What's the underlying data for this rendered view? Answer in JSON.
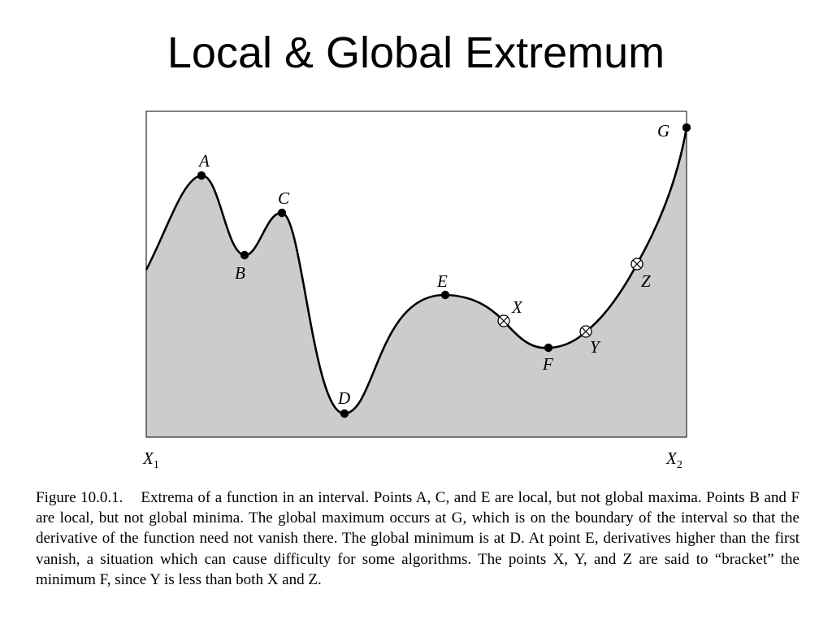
{
  "slide": {
    "title": "Local & Global Extremum"
  },
  "figure": {
    "fill_color": "#cccccc",
    "curve_color": "#000000",
    "points": [
      {
        "id": "A",
        "label": "A",
        "marker": "filled"
      },
      {
        "id": "B",
        "label": "B",
        "marker": "filled"
      },
      {
        "id": "C",
        "label": "C",
        "marker": "filled"
      },
      {
        "id": "D",
        "label": "D",
        "marker": "filled"
      },
      {
        "id": "E",
        "label": "E",
        "marker": "filled"
      },
      {
        "id": "F",
        "label": "F",
        "marker": "filled"
      },
      {
        "id": "G",
        "label": "G",
        "marker": "filled"
      },
      {
        "id": "X",
        "label": "X",
        "marker": "circled-cross"
      },
      {
        "id": "Y",
        "label": "Y",
        "marker": "circled-cross"
      },
      {
        "id": "Z",
        "label": "Z",
        "marker": "circled-cross"
      }
    ],
    "x_left": {
      "main": "X",
      "sub": "1"
    },
    "x_right": {
      "main": "X",
      "sub": "2"
    }
  },
  "caption": {
    "lead": "Figure 10.0.1.",
    "text": "Extrema of a function in an interval. Points A, C, and E are local, but not global maxima. Points B and F are local, but not global minima. The global maximum occurs at G, which is on the boundary of the interval so that the derivative of the function need not vanish there. The global minimum is at D. At point E, derivatives higher than the first vanish, a situation which can cause difficulty for some algorithms. The points X, Y, and Z are said to “bracket” the minimum F, since Y is less than both X and Z."
  }
}
